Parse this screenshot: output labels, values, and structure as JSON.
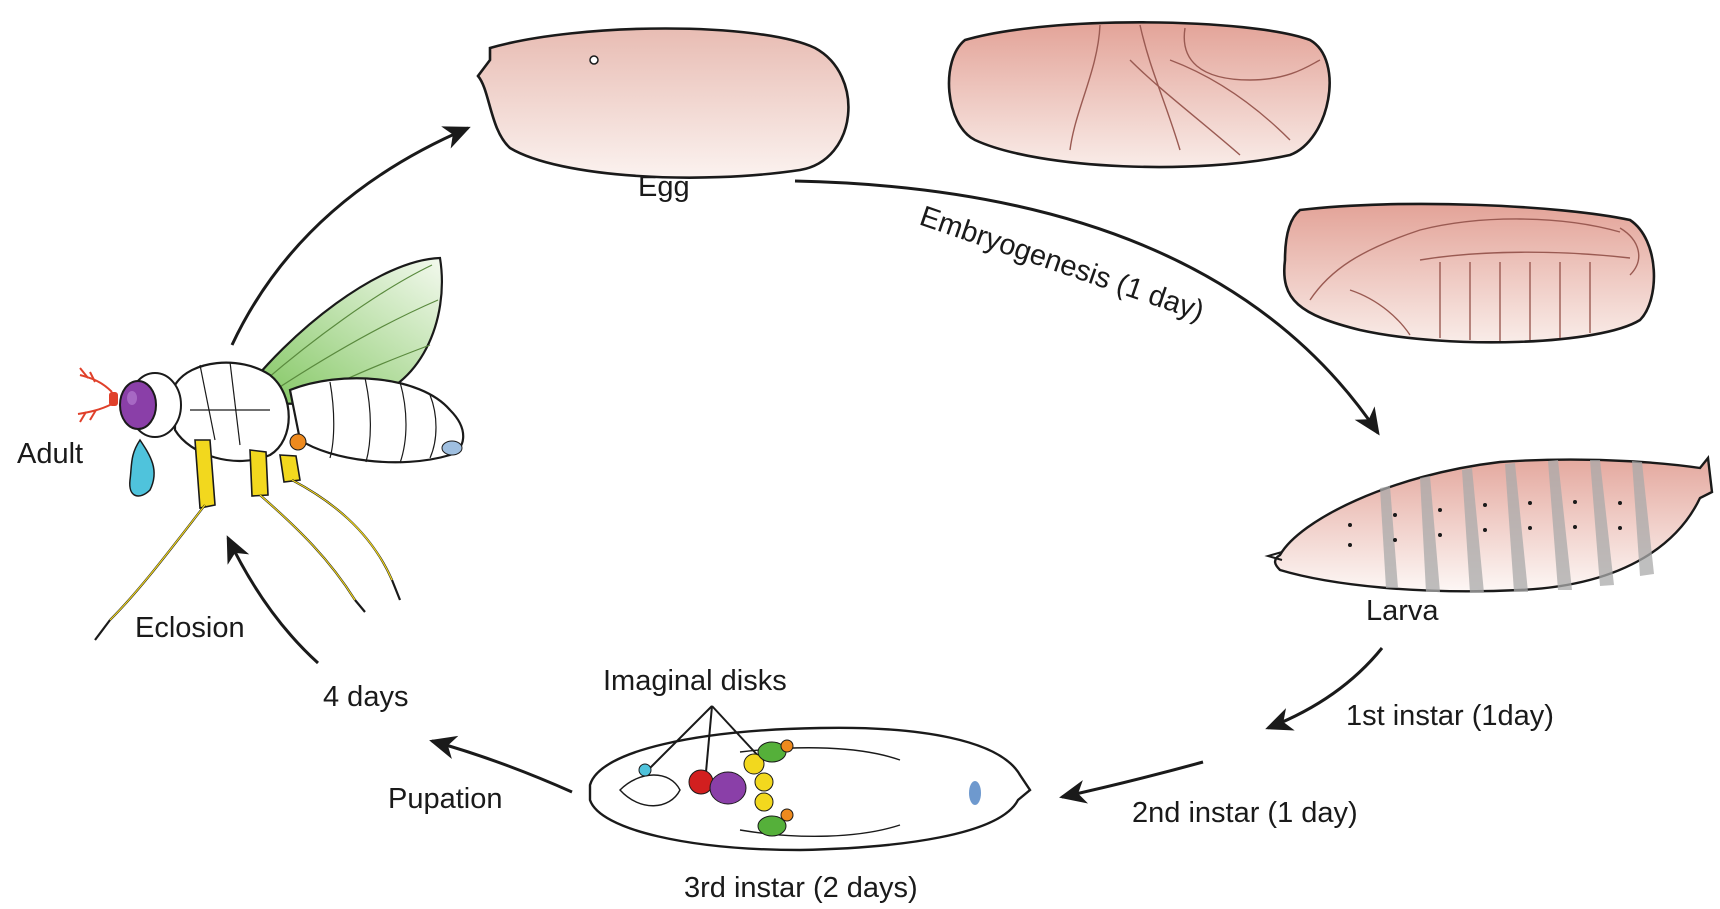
{
  "labels": {
    "egg": "Egg",
    "embryogenesis": "Embryogenesis (1 day)",
    "larva": "Larva",
    "first_instar": "1st instar (1day)",
    "second_instar": "2nd instar (1 day)",
    "third_instar": "3rd instar (2 days)",
    "imaginal_disks": "Imaginal disks",
    "pupation": "Pupation",
    "four_days": "4 days",
    "eclosion": "Eclosion",
    "adult": "Adult"
  },
  "colors": {
    "outline": "#1a1a1a",
    "embryo_fill_top": "#e6aaa0",
    "embryo_fill_bottom": "#fbf1ee",
    "wing_green": "#7cc45a",
    "eye_purple": "#8a3fa8",
    "leg_yellow": "#f2d81e",
    "antenna_red": "#e0402a",
    "mouth_cyan": "#4fc3dc",
    "disk_red": "#d21f1f",
    "disk_orange": "#ee8a1e",
    "disk_green": "#55b03a"
  }
}
